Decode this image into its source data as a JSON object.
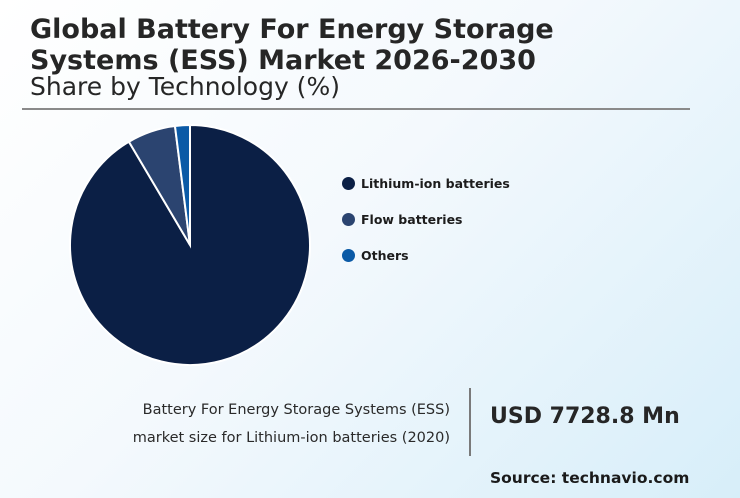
{
  "header": {
    "title": "Global Battery For Energy Storage Systems (ESS) Market 2026-2030",
    "subtitle": "Share by Technology (%)"
  },
  "chart_data": {
    "type": "pie",
    "categories": [
      "Lithium-ion batteries",
      "Flow batteries",
      "Others"
    ],
    "values": [
      91.5,
      6.5,
      2.0
    ],
    "colors": [
      "#0b1f45",
      "#2b4470",
      "#0b5aa6"
    ],
    "legend_position": "right"
  },
  "legend": {
    "items": [
      {
        "label": "Lithium-ion batteries",
        "color": "#0b1f45"
      },
      {
        "label": "Flow batteries",
        "color": "#2b4470"
      },
      {
        "label": "Others",
        "color": "#0b5aa6"
      }
    ]
  },
  "footer": {
    "note_line1": "Battery For Energy Storage Systems (ESS)",
    "note_line2": "market size for Lithium-ion batteries (2020)",
    "value": "USD 7728.8 Mn",
    "source": "Source: technavio.com"
  }
}
